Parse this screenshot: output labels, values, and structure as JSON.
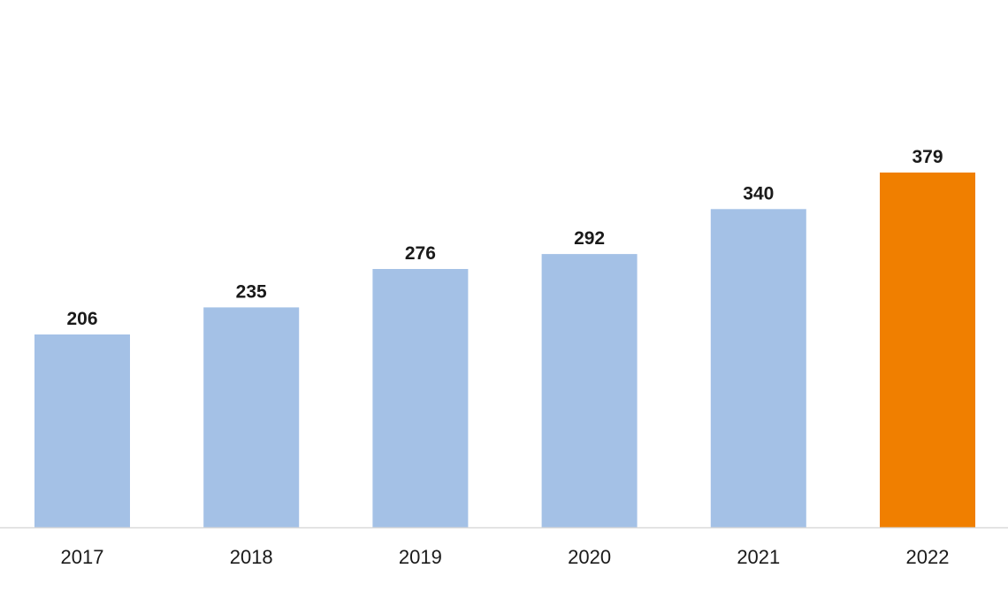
{
  "chart_data": {
    "type": "bar",
    "categories": [
      "2017",
      "2018",
      "2019",
      "2020",
      "2021",
      "2022"
    ],
    "values": [
      206,
      235,
      276,
      292,
      340,
      379
    ],
    "title": "",
    "xlabel": "",
    "ylabel": "",
    "ylim": [
      0,
      379
    ],
    "grid": false,
    "legend": "none",
    "data_labels": true,
    "colors": {
      "bar": "#a4c1e6",
      "highlight": "#f07f00",
      "axis": "#d9d9d9",
      "text": "#1a1a1a"
    },
    "highlight_category": "2022"
  }
}
